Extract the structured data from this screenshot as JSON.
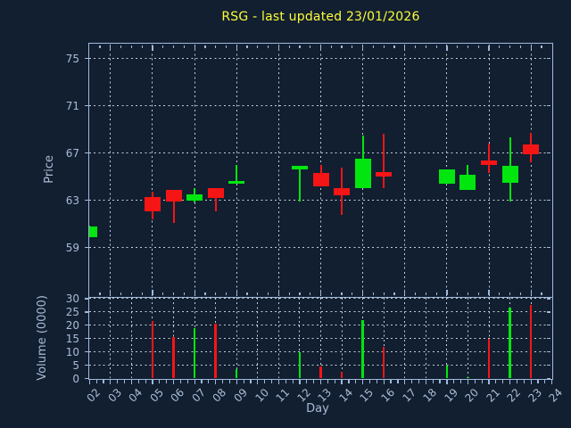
{
  "title": "RSG - last updated 23/01/2026",
  "colors": {
    "background": "#121f31",
    "title_text": "#fdfd37",
    "tick_text": "#a9bdd6",
    "spine": "#9fb9da",
    "grid": "#c3ccd4",
    "up": "#00e60e",
    "down": "#f51515"
  },
  "axes": {
    "price": {
      "label": "Price",
      "ticks": [
        75,
        71,
        67,
        63,
        59
      ]
    },
    "volume": {
      "label": "Volume (0000)",
      "ticks": [
        30,
        25,
        20,
        15,
        10,
        5,
        0
      ]
    },
    "day": {
      "label": "Day",
      "tick_labels": [
        "02",
        "03",
        "04",
        "05",
        "06",
        "07",
        "08",
        "09",
        "10",
        "11",
        "12",
        "13",
        "14",
        "15",
        "16",
        "17",
        "18",
        "19",
        "20",
        "21",
        "22",
        "23",
        "24"
      ]
    }
  },
  "chart_data": {
    "type": "candlestick",
    "title": "RSG - last updated 23/01/2026",
    "xlabel": "Day",
    "ylabel": "Price",
    "volume_ylabel": "Volume (0000)",
    "x_range_days": [
      2,
      24
    ],
    "price_ylim": [
      54.9,
      76.2
    ],
    "price_tick_step": 4,
    "volume_ylim": [
      0,
      30.2
    ],
    "volume_tick_step": 5,
    "grid": "dashed; price panel vertical gridlines at odd days, volume panel vertical gridlines every day",
    "legend_position": "none",
    "up_color": "green",
    "down_color": "red",
    "ohlcv": [
      {
        "day": 2,
        "open": 59.9,
        "high": 60.9,
        "low": 59.9,
        "close": 60.8,
        "volume": 0
      },
      {
        "day": 5,
        "open": 63.3,
        "high": 63.7,
        "low": 61.4,
        "close": 62.1,
        "volume": 21.5
      },
      {
        "day": 6,
        "open": 63.9,
        "high": 63.9,
        "low": 61.1,
        "close": 62.9,
        "volume": 15.5
      },
      {
        "day": 7,
        "open": 63.0,
        "high": 64.0,
        "low": 62.8,
        "close": 63.5,
        "volume": 19
      },
      {
        "day": 8,
        "open": 64.0,
        "high": 64.0,
        "low": 62.1,
        "close": 63.2,
        "volume": 20.5
      },
      {
        "day": 9,
        "open": 64.5,
        "high": 66.0,
        "low": 64.5,
        "close": 64.6,
        "volume": 3.5
      },
      {
        "day": 12,
        "open": 65.6,
        "high": 65.9,
        "low": 62.9,
        "close": 65.9,
        "volume": 10
      },
      {
        "day": 13,
        "open": 65.3,
        "high": 66.0,
        "low": 64.2,
        "close": 64.2,
        "volume": 4.5
      },
      {
        "day": 14,
        "open": 64.0,
        "high": 65.8,
        "low": 61.8,
        "close": 63.4,
        "volume": 2.5
      },
      {
        "day": 15,
        "open": 64.0,
        "high": 68.5,
        "low": 64.0,
        "close": 66.5,
        "volume": 22
      },
      {
        "day": 16,
        "open": 65.4,
        "high": 68.6,
        "low": 64.0,
        "close": 65.0,
        "volume": 12
      },
      {
        "day": 19,
        "open": 64.4,
        "high": 65.6,
        "low": 64.4,
        "close": 65.6,
        "volume": 5
      },
      {
        "day": 20,
        "open": 63.9,
        "high": 66.0,
        "low": 63.9,
        "close": 65.2,
        "volume": 0.5
      },
      {
        "day": 21,
        "open": 66.4,
        "high": 67.8,
        "low": 65.3,
        "close": 66.0,
        "volume": 15
      },
      {
        "day": 22,
        "open": 64.5,
        "high": 68.3,
        "low": 62.9,
        "close": 65.9,
        "volume": 26.5
      },
      {
        "day": 23,
        "open": 67.7,
        "high": 68.7,
        "low": 66.2,
        "close": 66.9,
        "volume": 27.5
      }
    ]
  }
}
